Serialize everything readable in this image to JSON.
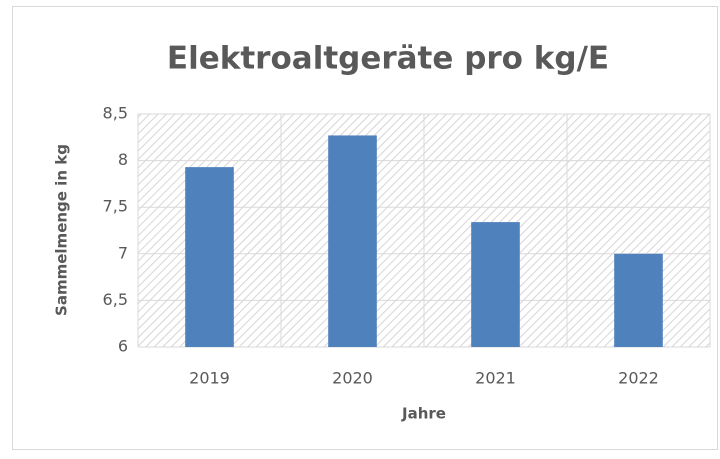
{
  "chart_data": {
    "type": "bar",
    "title": "Elektroaltgeräte pro kg/E",
    "x_label": "Jahre",
    "y_label": "Sammelmenge in kg",
    "categories": [
      "2019",
      "2020",
      "2021",
      "2022"
    ],
    "values": [
      7.93,
      8.27,
      7.34,
      7.0
    ],
    "color": "#4f81bd",
    "ylim": [
      6,
      8.5
    ],
    "yticks": [
      6,
      {
        "value": 6.5,
        "label": "6,5"
      },
      7,
      {
        "value": 7.5,
        "label": "7,5"
      },
      8,
      {
        "value": 8.5,
        "label": "8,5"
      }
    ],
    "grid": true
  }
}
